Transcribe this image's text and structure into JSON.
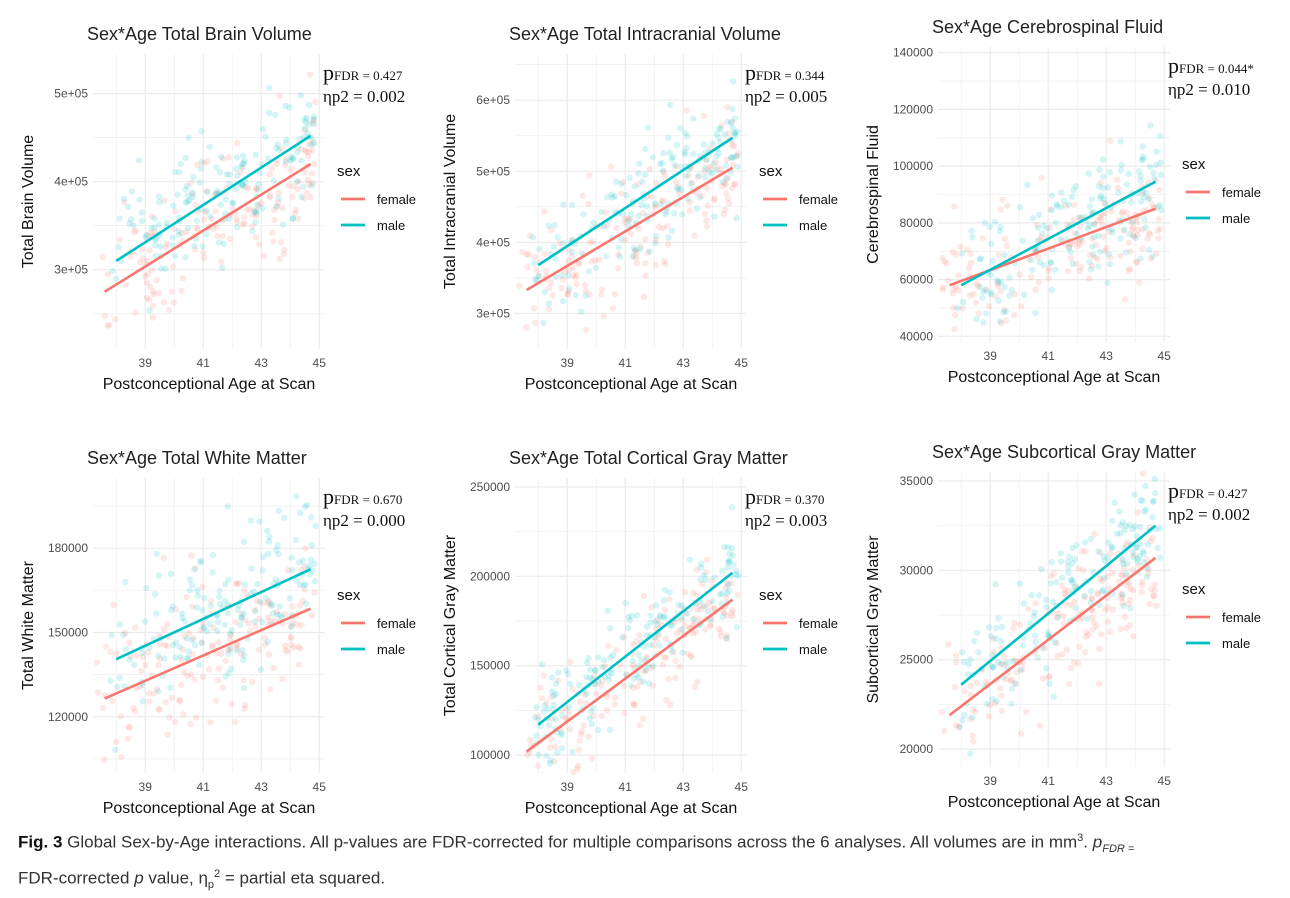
{
  "colors": {
    "female": "#F8766D",
    "male": "#00BFC4",
    "grid": "#ebebeb"
  },
  "caption": {
    "label": "Fig. 3",
    "text": "Global Sex-by-Age interactions. All p-values are FDR-corrected for multiple comparisons across the 6 analyses. All volumes are in mm",
    "sup": "3",
    "sep": ". ",
    "p_sym": "p",
    "p_sub": "FDR =",
    "line2_a": "FDR-corrected ",
    "line2_p": "p",
    "line2_b": " value, η",
    "line2_sub": "p",
    "line2_sup": "2",
    "line2_c": " = partial eta squared."
  },
  "chart_data": [
    {
      "type": "scatter",
      "title": "Sex*Age Total Brain Volume",
      "xlabel": "Postconceptional Age at Scan",
      "ylabel": "Total Brain Volume",
      "xlim": [
        37.2,
        45.2
      ],
      "ylim": [
        210000,
        545000
      ],
      "xticks": [
        39,
        41,
        43,
        45
      ],
      "yticks": [
        300000,
        400000,
        500000
      ],
      "ytick_labels": [
        "3e+05",
        "4e+05",
        "5e+05"
      ],
      "stat_p_label": "FDR = 0.427",
      "stat_eta": "ηp2 = 0.002",
      "legend": {
        "title": "sex",
        "entries": [
          "female",
          "male"
        ]
      },
      "series": [
        {
          "name": "female",
          "fit": [
            [
              37.6,
              275000
            ],
            [
              44.7,
              420000
            ]
          ],
          "x_range": [
            37.3,
            44.9
          ],
          "spread": 38000
        },
        {
          "name": "male",
          "fit": [
            [
              38.0,
              310000
            ],
            [
              44.7,
              452000
            ]
          ],
          "x_range": [
            37.8,
            44.9
          ],
          "spread": 38000
        }
      ]
    },
    {
      "type": "scatter",
      "title": "Sex*Age Total Intracranial Volume",
      "xlabel": "Postconceptional Age at Scan",
      "ylabel": "Total Intracranial Volume",
      "xlim": [
        37.2,
        45.2
      ],
      "ylim": [
        250000,
        665000
      ],
      "xticks": [
        39,
        41,
        43,
        45
      ],
      "yticks": [
        300000,
        400000,
        500000,
        600000
      ],
      "ytick_labels": [
        "3e+05",
        "4e+05",
        "5e+05",
        "6e+05"
      ],
      "stat_p_label": "FDR = 0.344",
      "stat_eta": "ηp2 = 0.005",
      "legend": {
        "title": "sex",
        "entries": [
          "female",
          "male"
        ]
      },
      "series": [
        {
          "name": "female",
          "fit": [
            [
              37.6,
              333000
            ],
            [
              44.7,
              505000
            ]
          ],
          "x_range": [
            37.3,
            44.9
          ],
          "spread": 40000
        },
        {
          "name": "male",
          "fit": [
            [
              38.0,
              368000
            ],
            [
              44.7,
              547000
            ]
          ],
          "x_range": [
            37.8,
            44.9
          ],
          "spread": 40000
        }
      ]
    },
    {
      "type": "scatter",
      "title": "Sex*Age Cerebrospinal Fluid",
      "xlabel": "Postconceptional Age at Scan",
      "ylabel": "Cerebrospinal Fluid",
      "xlim": [
        37.2,
        45.2
      ],
      "ylim": [
        38000,
        142000
      ],
      "xticks": [
        39,
        41,
        43,
        45
      ],
      "yticks": [
        40000,
        60000,
        80000,
        100000,
        120000,
        140000
      ],
      "ytick_labels": [
        "40000",
        "60000",
        "80000",
        "100000",
        "120000",
        "140000"
      ],
      "stat_p_label": "FDR = 0.044*",
      "stat_eta": "ηp2 = 0.010",
      "legend": {
        "title": "sex",
        "entries": [
          "female",
          "male"
        ]
      },
      "series": [
        {
          "name": "female",
          "fit": [
            [
              37.6,
              58000
            ],
            [
              44.7,
              85000
            ]
          ],
          "x_range": [
            37.3,
            44.9
          ],
          "spread": 11000
        },
        {
          "name": "male",
          "fit": [
            [
              38.0,
              58000
            ],
            [
              44.7,
              94500
            ]
          ],
          "x_range": [
            37.8,
            44.9
          ],
          "spread": 11000
        }
      ]
    },
    {
      "type": "scatter",
      "title": "Sex*Age Total White Matter",
      "xlabel": "Postconceptional Age at Scan",
      "ylabel": "Total White Matter",
      "xlim": [
        37.2,
        45.2
      ],
      "ylim": [
        100000,
        205000
      ],
      "xticks": [
        39,
        41,
        43,
        45
      ],
      "yticks": [
        120000,
        150000,
        180000
      ],
      "ytick_labels": [
        "120000",
        "150000",
        "180000"
      ],
      "stat_p_label": "FDR = 0.670",
      "stat_eta": "ηp2 = 0.000",
      "legend": {
        "title": "sex",
        "entries": [
          "female",
          "male"
        ]
      },
      "series": [
        {
          "name": "female",
          "fit": [
            [
              37.6,
              126500
            ],
            [
              44.7,
              158500
            ]
          ],
          "x_range": [
            37.3,
            44.9
          ],
          "spread": 14000
        },
        {
          "name": "male",
          "fit": [
            [
              38.0,
              140500
            ],
            [
              44.7,
              172500
            ]
          ],
          "x_range": [
            37.8,
            44.9
          ],
          "spread": 14000
        }
      ]
    },
    {
      "type": "scatter",
      "title": "Sex*Age Total Cortical Gray Matter",
      "xlabel": "Postconceptional Age at Scan",
      "ylabel": "Total Cortical Gray Matter",
      "xlim": [
        37.2,
        45.2
      ],
      "ylim": [
        90000,
        255000
      ],
      "xticks": [
        39,
        41,
        43,
        45
      ],
      "yticks": [
        100000,
        150000,
        200000,
        250000
      ],
      "ytick_labels": [
        "100000",
        "150000",
        "200000",
        "250000"
      ],
      "stat_p_label": "FDR = 0.370",
      "stat_eta": "ηp2 = 0.003",
      "legend": {
        "title": "sex",
        "entries": [
          "female",
          "male"
        ]
      },
      "series": [
        {
          "name": "female",
          "fit": [
            [
              37.6,
              102000
            ],
            [
              44.7,
              187000
            ]
          ],
          "x_range": [
            37.3,
            44.9
          ],
          "spread": 14000
        },
        {
          "name": "male",
          "fit": [
            [
              38.0,
              117000
            ],
            [
              44.7,
              202000
            ]
          ],
          "x_range": [
            37.8,
            44.9
          ],
          "spread": 14000
        }
      ]
    },
    {
      "type": "scatter",
      "title": "Sex*Age Subcortical Gray Matter",
      "xlabel": "Postconceptional Age at Scan",
      "ylabel": "Subcortical Gray Matter",
      "xlim": [
        37.2,
        45.2
      ],
      "ylim": [
        19000,
        35500
      ],
      "xticks": [
        39,
        41,
        43,
        45
      ],
      "yticks": [
        20000,
        25000,
        30000,
        35000
      ],
      "ytick_labels": [
        "20000",
        "25000",
        "30000",
        "35000"
      ],
      "stat_p_label": "FDR = 0.427",
      "stat_eta": "ηp2 = 0.002",
      "legend": {
        "title": "sex",
        "entries": [
          "female",
          "male"
        ]
      },
      "series": [
        {
          "name": "female",
          "fit": [
            [
              37.6,
              21900
            ],
            [
              44.7,
              30700
            ]
          ],
          "x_range": [
            37.3,
            44.9
          ],
          "spread": 1800
        },
        {
          "name": "male",
          "fit": [
            [
              38.0,
              23600
            ],
            [
              44.7,
              32500
            ]
          ],
          "x_range": [
            37.8,
            44.9
          ],
          "spread": 1800
        }
      ]
    }
  ]
}
